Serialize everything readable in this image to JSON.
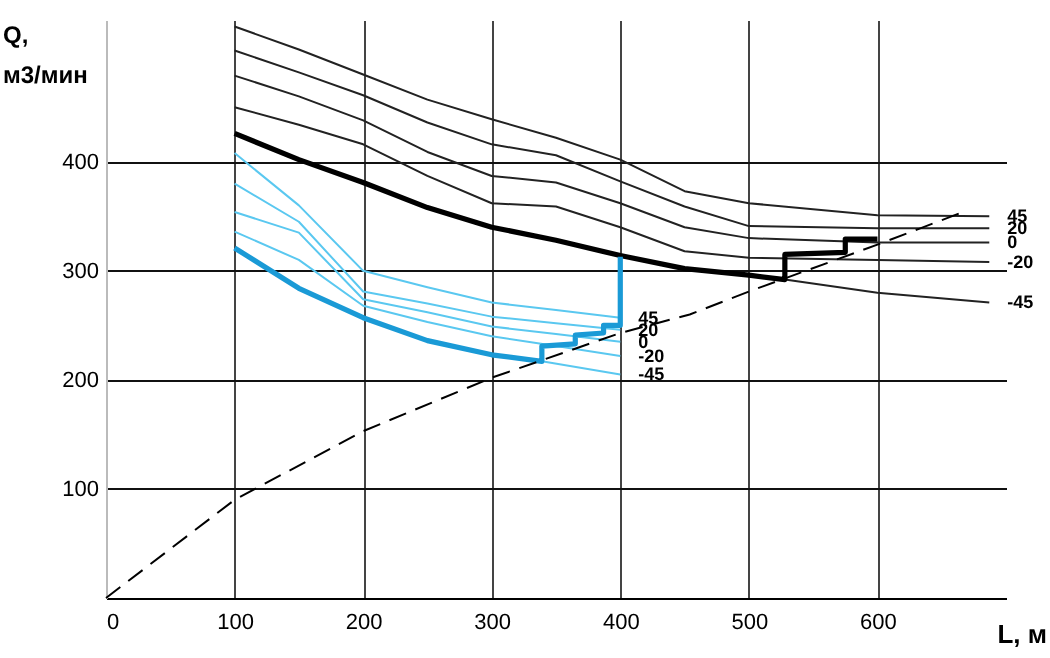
{
  "chart_data": {
    "type": "line",
    "xlabel": "L, м",
    "ylabel": "Q, м3/мин",
    "xlim": [
      0,
      700
    ],
    "ylim": [
      0,
      530
    ],
    "xticks": [
      0,
      100,
      200,
      300,
      400,
      500,
      600
    ],
    "yticks": [
      100,
      200,
      300,
      400
    ],
    "grid": true,
    "line_style": "solid",
    "series": [
      {
        "name": "45",
        "color": "#222222",
        "x": [
          100,
          150,
          200,
          250,
          300,
          350,
          400,
          450,
          500,
          600,
          687
        ],
        "values": [
          524,
          503,
          480,
          457,
          439,
          422,
          402,
          373,
          362,
          351,
          350
        ]
      },
      {
        "name": "20",
        "color": "#222222",
        "x": [
          100,
          150,
          200,
          250,
          300,
          350,
          400,
          450,
          500,
          600,
          687
        ],
        "values": [
          502,
          482,
          461,
          436,
          416,
          406,
          382,
          359,
          341,
          339,
          339
        ]
      },
      {
        "name": "0",
        "color": "#222222",
        "x": [
          100,
          150,
          200,
          250,
          300,
          350,
          400,
          450,
          500,
          600,
          687
        ],
        "values": [
          479,
          460,
          438,
          409,
          387,
          381,
          362,
          340,
          330,
          326,
          326
        ]
      },
      {
        "name": "-20",
        "color": "#222222",
        "x": [
          100,
          150,
          200,
          250,
          300,
          350,
          400,
          450,
          500,
          600,
          687
        ],
        "values": [
          450,
          434,
          416,
          387,
          362,
          359,
          340,
          318,
          312,
          310,
          308
        ]
      },
      {
        "name": "-45",
        "color": "#222222",
        "x": [
          528,
          600,
          687
        ],
        "values": [
          292,
          280,
          271
        ]
      },
      {
        "color": "#000000",
        "x": [
          100,
          150,
          200,
          250,
          300,
          350,
          400,
          450,
          500,
          528,
          528,
          575,
          575,
          600
        ],
        "values": [
          426,
          402,
          381,
          358,
          340,
          328,
          314,
          302,
          296,
          292,
          315,
          317,
          329,
          329
        ]
      },
      {
        "name": "45",
        "color": "#5ac8f0",
        "x": [
          100,
          150,
          200,
          250,
          300,
          350,
          400
        ],
        "values": [
          408,
          360,
          300,
          285,
          271,
          264,
          257
        ]
      },
      {
        "name": "20",
        "color": "#5ac8f0",
        "x": [
          100,
          150,
          200,
          250,
          300,
          350,
          400
        ],
        "values": [
          380,
          345,
          281,
          270,
          258,
          252,
          246
        ]
      },
      {
        "name": "0",
        "color": "#5ac8f0",
        "x": [
          100,
          150,
          200,
          250,
          300,
          350,
          400
        ],
        "values": [
          354,
          335,
          274,
          262,
          249,
          242,
          235
        ]
      },
      {
        "name": "-20",
        "color": "#5ac8f0",
        "x": [
          100,
          150,
          200,
          250,
          300,
          350,
          400
        ],
        "values": [
          336,
          310,
          268,
          253,
          240,
          231,
          222
        ]
      },
      {
        "name": "-45",
        "color": "#5ac8f0",
        "x": [
          339,
          400
        ],
        "values": [
          217,
          205
        ]
      },
      {
        "color": "#1a9ad6",
        "x": [
          100,
          150,
          200,
          250,
          300,
          339,
          339,
          365,
          365,
          387,
          387,
          400,
          400
        ],
        "values": [
          321,
          284,
          257,
          236,
          223,
          217,
          231,
          233,
          241,
          243,
          250,
          250,
          313
        ]
      },
      {
        "color": "#000000",
        "line_style": "dashed",
        "x": [
          0,
          100,
          200,
          300,
          400,
          454,
          500,
          600,
          669
        ],
        "values": [
          0,
          90,
          153,
          202,
          243,
          260,
          281,
          324,
          355
        ]
      }
    ]
  }
}
